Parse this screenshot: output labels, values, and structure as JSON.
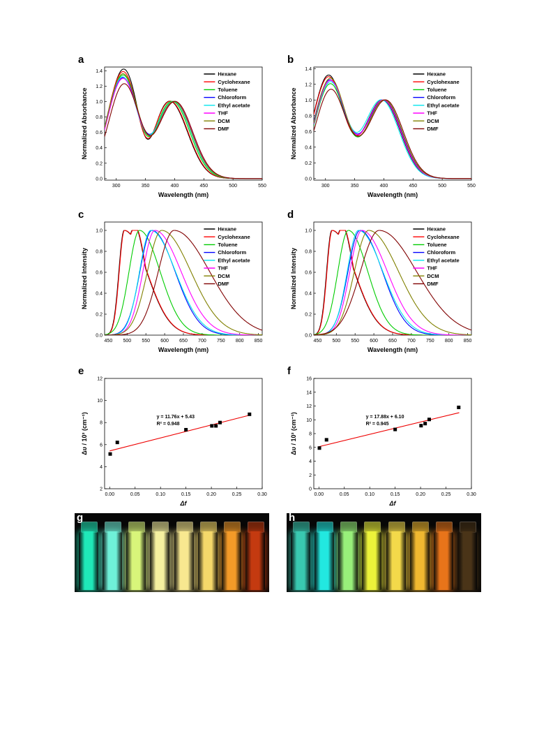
{
  "solvents": [
    "Hexane",
    "Cyclohexane",
    "Toluene",
    "Chloroform",
    "Ethyl acetate",
    "THF",
    "DCM",
    "DMF"
  ],
  "colors": [
    "#000000",
    "#ff0000",
    "#00cc00",
    "#0000ff",
    "#00e5ee",
    "#ff00ff",
    "#808000",
    "#800000"
  ],
  "chart_data": [
    {
      "id": "a",
      "type": "line",
      "xlabel": "Wavelength (nm)",
      "ylabel": "Normalized Absorbance",
      "xlim": [
        280,
        550
      ],
      "ylim": [
        -0.02,
        1.45
      ],
      "xticks": [
        300,
        350,
        400,
        450,
        500,
        550
      ],
      "yticks": [
        0.0,
        0.2,
        0.4,
        0.6,
        0.8,
        1.0,
        1.2,
        1.4
      ],
      "ytick_labels": [
        "0.0",
        "0.2",
        "0.4",
        "0.6",
        "0.8",
        "1.0",
        "1.2",
        "1.4"
      ],
      "legend_position": "right",
      "model": "absorption",
      "series": [
        {
          "name": "Hexane",
          "peak1": 1.4,
          "peak1_x": 312,
          "peak2_x": 392,
          "valley": 0.52,
          "offset": 0
        },
        {
          "name": "Cyclohexane",
          "peak1": 1.37,
          "peak1_x": 311,
          "peak2_x": 393,
          "valley": 0.53,
          "offset": 0
        },
        {
          "name": "Toluene",
          "peak1": 1.33,
          "peak1_x": 311,
          "peak2_x": 396,
          "valley": 0.55,
          "offset": 0
        },
        {
          "name": "Chloroform",
          "peak1": 1.3,
          "peak1_x": 311,
          "peak2_x": 399,
          "valley": 0.58,
          "offset": 0
        },
        {
          "name": "Ethyl acetate",
          "peak1": 1.31,
          "peak1_x": 310,
          "peak2_x": 398,
          "valley": 0.57,
          "offset": 0
        },
        {
          "name": "THF",
          "peak1": 1.29,
          "peak1_x": 311,
          "peak2_x": 400,
          "valley": 0.56,
          "offset": 0
        },
        {
          "name": "DCM",
          "peak1": 1.35,
          "peak1_x": 311,
          "peak2_x": 399,
          "valley": 0.56,
          "offset": 0
        },
        {
          "name": "DMF",
          "peak1": 1.22,
          "peak1_x": 313,
          "peak2_x": 401,
          "valley": 0.56,
          "offset": 0
        }
      ]
    },
    {
      "id": "b",
      "type": "line",
      "xlabel": "Wavelength (nm)",
      "ylabel": "Normalized Absorbance",
      "xlim": [
        280,
        550
      ],
      "ylim": [
        -0.02,
        1.42
      ],
      "xticks": [
        300,
        350,
        400,
        450,
        500,
        550
      ],
      "yticks": [
        0.0,
        0.2,
        0.4,
        0.6,
        0.8,
        1.0,
        1.2,
        1.4
      ],
      "ytick_labels": [
        "0.0",
        "0.2",
        "0.4",
        "0.6",
        "0.8",
        "1.0",
        "1.2",
        "1.4"
      ],
      "legend_position": "right",
      "model": "absorption",
      "series": [
        {
          "name": "Hexane",
          "peak1": 1.31,
          "peak1_x": 305,
          "peak2_x": 398,
          "valley": 0.55,
          "offset": 0
        },
        {
          "name": "Cyclohexane",
          "peak1": 1.29,
          "peak1_x": 305,
          "peak2_x": 399,
          "valley": 0.55,
          "offset": 0
        },
        {
          "name": "Toluene",
          "peak1": 1.2,
          "peak1_x": 308,
          "peak2_x": 401,
          "valley": 0.53,
          "offset": 0
        },
        {
          "name": "Chloroform",
          "peak1": 1.25,
          "peak1_x": 307,
          "peak2_x": 400,
          "valley": 0.57,
          "offset": 0
        },
        {
          "name": "Ethyl acetate",
          "peak1": 1.22,
          "peak1_x": 308,
          "peak2_x": 396,
          "valley": 0.59,
          "offset": 0
        },
        {
          "name": "THF",
          "peak1": 1.24,
          "peak1_x": 308,
          "peak2_x": 399,
          "valley": 0.56,
          "offset": 0
        },
        {
          "name": "DCM",
          "peak1": 1.27,
          "peak1_x": 308,
          "peak2_x": 401,
          "valley": 0.54,
          "offset": 0
        },
        {
          "name": "DMF",
          "peak1": 1.13,
          "peak1_x": 309,
          "peak2_x": 403,
          "valley": 0.54,
          "offset": 0
        }
      ]
    },
    {
      "id": "c",
      "type": "line",
      "xlabel": "Wavelength (nm)",
      "ylabel": "Normalized Intensity",
      "xlim": [
        440,
        860
      ],
      "ylim": [
        0,
        1.08
      ],
      "xticks": [
        450,
        500,
        550,
        600,
        650,
        700,
        750,
        800,
        850
      ],
      "yticks": [
        0.0,
        0.2,
        0.4,
        0.6,
        0.8,
        1.0
      ],
      "ytick_labels": [
        "0.0",
        "0.2",
        "0.4",
        "0.6",
        "0.8",
        "1.0"
      ],
      "legend_position": "right",
      "model": "emission",
      "series": [
        {
          "name": "Hexane",
          "peak": 492,
          "wl": 14,
          "wr": 60,
          "shoulder": 0.55
        },
        {
          "name": "Cyclohexane",
          "peak": 493,
          "wl": 14,
          "wr": 60,
          "shoulder": 0.55
        },
        {
          "name": "Toluene",
          "peak": 533,
          "wl": 28,
          "wr": 55
        },
        {
          "name": "Chloroform",
          "peak": 566,
          "wl": 32,
          "wr": 62
        },
        {
          "name": "Ethyl acetate",
          "peak": 563,
          "wl": 30,
          "wr": 66
        },
        {
          "name": "THF",
          "peak": 574,
          "wl": 32,
          "wr": 70
        },
        {
          "name": "DCM",
          "peak": 592,
          "wl": 38,
          "wr": 78
        },
        {
          "name": "DMF",
          "peak": 625,
          "wl": 42,
          "wr": 95
        }
      ]
    },
    {
      "id": "d",
      "type": "line",
      "xlabel": "Wavelength (nm)",
      "ylabel": "Normalized Intensity",
      "xlim": [
        440,
        860
      ],
      "ylim": [
        0,
        1.08
      ],
      "xticks": [
        450,
        500,
        550,
        600,
        650,
        700,
        750,
        800,
        850
      ],
      "yticks": [
        0.0,
        0.2,
        0.4,
        0.6,
        0.8,
        1.0
      ],
      "ytick_labels": [
        "0.0",
        "0.2",
        "0.4",
        "0.6",
        "0.8",
        "1.0"
      ],
      "legend_position": "right",
      "model": "emission",
      "series": [
        {
          "name": "Hexane",
          "peak": 488,
          "wl": 14,
          "wr": 60,
          "shoulder": 0.55
        },
        {
          "name": "Cyclohexane",
          "peak": 489,
          "wl": 14,
          "wr": 60,
          "shoulder": 0.55
        },
        {
          "name": "Toluene",
          "peak": 532,
          "wl": 28,
          "wr": 52
        },
        {
          "name": "Chloroform",
          "peak": 563,
          "wl": 32,
          "wr": 60
        },
        {
          "name": "Ethyl acetate",
          "peak": 559,
          "wl": 30,
          "wr": 65
        },
        {
          "name": "THF",
          "peak": 568,
          "wl": 32,
          "wr": 68
        },
        {
          "name": "DCM",
          "peak": 586,
          "wl": 38,
          "wr": 80
        },
        {
          "name": "DMF",
          "peak": 614,
          "wl": 50,
          "wr": 100
        }
      ]
    },
    {
      "id": "e",
      "type": "scatter",
      "xlabel": "Δf",
      "ylabel": "Δυ / 10³ (cm⁻¹)",
      "xlim": [
        -0.01,
        0.3
      ],
      "ylim": [
        2,
        12
      ],
      "xticks": [
        0.0,
        0.05,
        0.1,
        0.15,
        0.2,
        0.25,
        0.3
      ],
      "xtick_labels": [
        "0.00",
        "0.05",
        "0.10",
        "0.15",
        "0.20",
        "0.25",
        "0.30"
      ],
      "yticks": [
        2,
        4,
        6,
        8,
        10,
        12
      ],
      "ytick_labels": [
        "2",
        "4",
        "6",
        "8",
        "10",
        "12"
      ],
      "x": [
        0.001,
        0.015,
        0.15,
        0.201,
        0.209,
        0.217,
        0.275
      ],
      "y": [
        5.15,
        6.2,
        7.35,
        7.7,
        7.7,
        8.0,
        8.75
      ],
      "fit": {
        "slope": 11.76,
        "intercept": 5.43,
        "x_range": [
          0.0,
          0.276
        ]
      },
      "equation": "y = 11.76x + 5.43",
      "r2": "R² = 0.948"
    },
    {
      "id": "f",
      "type": "scatter",
      "xlabel": "Δf",
      "ylabel": "Δυ / 10³ (cm⁻¹)",
      "xlim": [
        -0.01,
        0.3
      ],
      "ylim": [
        0,
        16
      ],
      "xticks": [
        0.0,
        0.05,
        0.1,
        0.15,
        0.2,
        0.25,
        0.3
      ],
      "xtick_labels": [
        "0.00",
        "0.05",
        "0.10",
        "0.15",
        "0.20",
        "0.25",
        "0.30"
      ],
      "yticks": [
        0,
        2,
        4,
        6,
        8,
        10,
        12,
        14,
        16
      ],
      "ytick_labels": [
        "0",
        "2",
        "4",
        "6",
        "8",
        "10",
        "12",
        "14",
        "16"
      ],
      "x": [
        0.001,
        0.015,
        0.15,
        0.201,
        0.209,
        0.217,
        0.275
      ],
      "y": [
        5.9,
        7.1,
        8.6,
        9.15,
        9.45,
        10.05,
        11.8
      ],
      "fit": {
        "slope": 17.88,
        "intercept": 6.1,
        "x_range": [
          0.0,
          0.276
        ]
      },
      "equation": "y = 17.88x + 6.10",
      "r2": "R² = 0.945"
    }
  ],
  "photos": [
    {
      "id": "g",
      "vial_colors": [
        "#1fe8b8",
        "#6ff0d8",
        "#d8f57a",
        "#f5f0a0",
        "#f8e890",
        "#f5d86a",
        "#f39a28",
        "#c43a10"
      ]
    },
    {
      "id": "h",
      "vial_colors": [
        "#39c8b0",
        "#22e8e0",
        "#98f07a",
        "#ecf23a",
        "#f3d94a",
        "#f0b830",
        "#e8741a",
        "#4a3418"
      ]
    }
  ]
}
